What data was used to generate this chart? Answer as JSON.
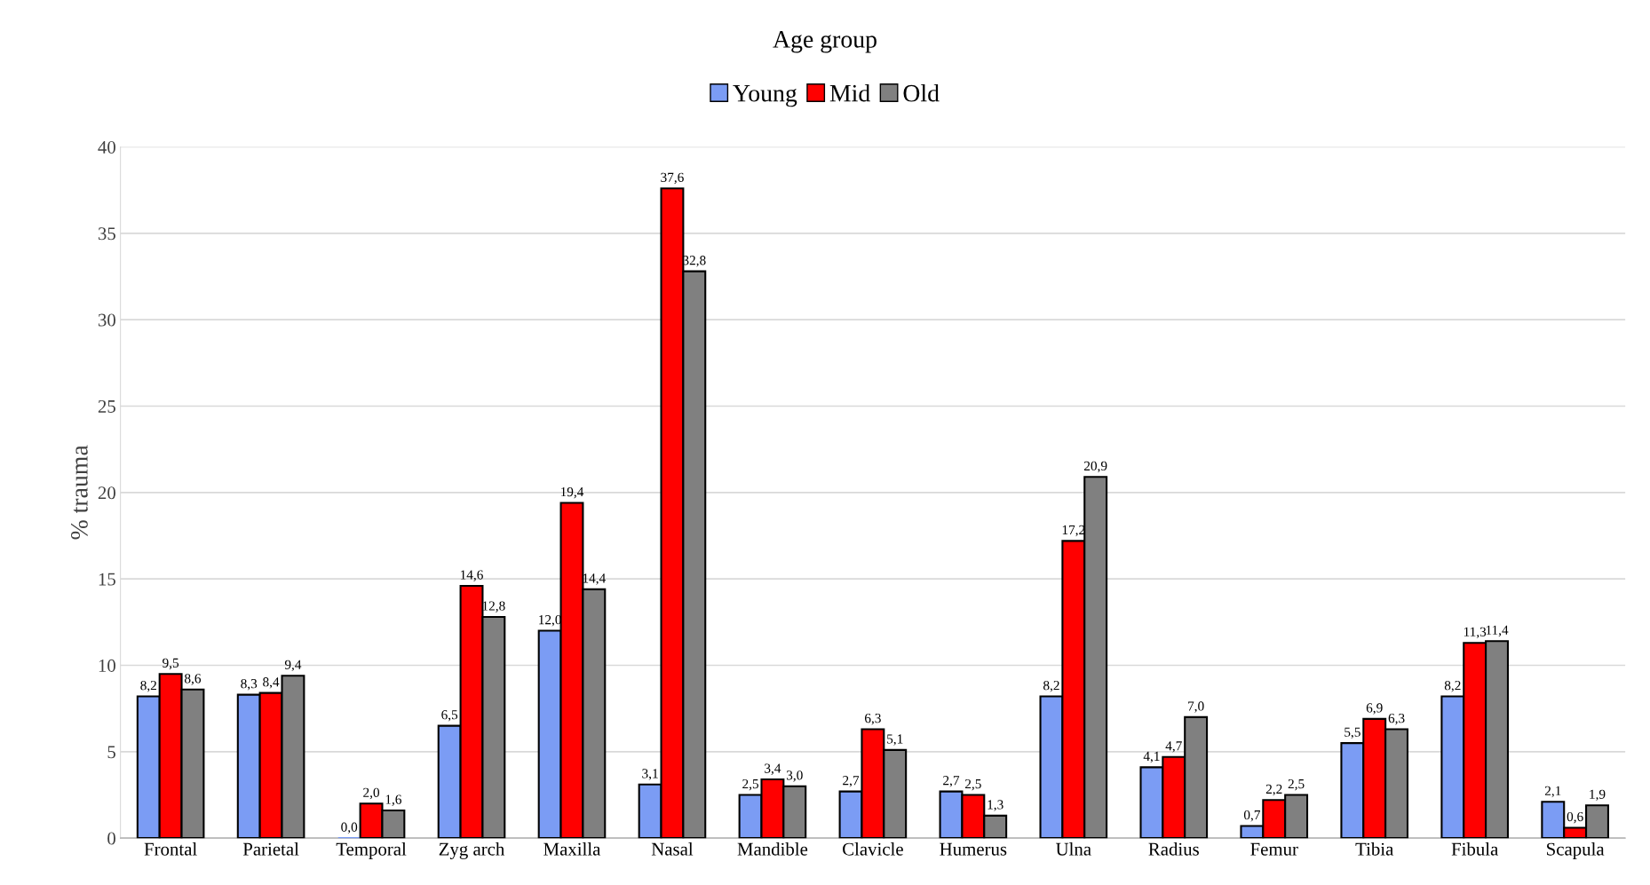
{
  "chart_data": {
    "type": "bar",
    "title": "Age group",
    "ylabel": "% trauma",
    "categories": [
      "Frontal",
      "Parietal",
      "Temporal",
      "Zyg arch",
      "Maxilla",
      "Nasal",
      "Mandible",
      "Clavicle",
      "Humerus",
      "Ulna",
      "Radius",
      "Femur",
      "Tibia",
      "Fibula",
      "Scapula"
    ],
    "series": [
      {
        "name": "Young",
        "color": "#7b9cf4",
        "values": [
          8.2,
          8.3,
          0.0,
          6.5,
          12.0,
          3.1,
          2.5,
          2.7,
          2.7,
          8.2,
          4.1,
          0.7,
          5.5,
          8.2,
          2.1
        ],
        "value_labels": [
          "8,2",
          "8,3",
          "0,0",
          "6,5",
          "12,0",
          "3,1",
          "2,5",
          "2,7",
          "2,7",
          "8,2",
          "4,1",
          "0,7",
          "5,5",
          "8,2",
          "2,1"
        ]
      },
      {
        "name": "Mid",
        "color": "#ff0000",
        "values": [
          9.5,
          8.4,
          2.0,
          14.6,
          19.4,
          37.6,
          3.4,
          6.3,
          2.5,
          17.2,
          4.7,
          2.2,
          6.9,
          11.3,
          0.6
        ],
        "value_labels": [
          "9,5",
          "8,4",
          "2,0",
          "14,6",
          "19,4",
          "37,6",
          "3,4",
          "6,3",
          "2,5",
          "17,2",
          "4,7",
          "2,2",
          "6,9",
          "11,3",
          "0,6"
        ]
      },
      {
        "name": "Old",
        "color": "#808080",
        "values": [
          8.6,
          9.4,
          1.6,
          12.8,
          14.4,
          32.8,
          3.0,
          5.1,
          1.3,
          20.9,
          7.0,
          2.5,
          6.3,
          11.4,
          1.9
        ],
        "value_labels": [
          "8,6",
          "9,4",
          "1,6",
          "12,8",
          "14,4",
          "32,8",
          "3,0",
          "5,1",
          "1,3",
          "20,9",
          "7,0",
          "2,5",
          "6,3",
          "11,4",
          "1,9"
        ]
      }
    ],
    "ylim": [
      0,
      40
    ],
    "yticks": [
      0,
      5,
      10,
      15,
      20,
      25,
      30,
      35,
      40
    ],
    "grid": "y",
    "legend": "top"
  }
}
